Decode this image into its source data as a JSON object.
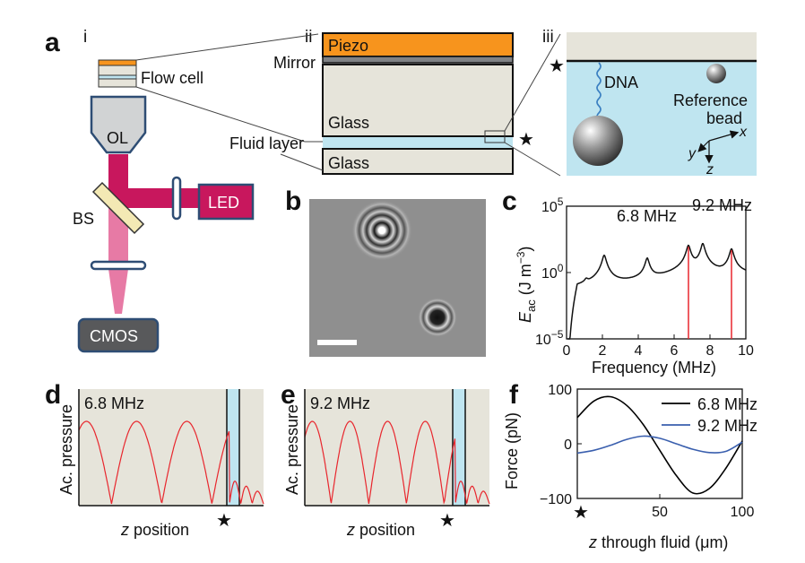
{
  "panels": {
    "a": {
      "letter": "a",
      "sub_i": "i",
      "sub_ii": "ii",
      "sub_iii": "iii",
      "flow_cell": "Flow cell",
      "ol": "OL",
      "led": "LED",
      "bs": "BS",
      "cmos": "CMOS",
      "piezo": "Piezo",
      "mirror": "Mirror",
      "glass_top": "Glass",
      "fluid_layer": "Fluid layer",
      "glass_bottom": "Glass",
      "dna": "DNA",
      "reference_line1": "Reference",
      "reference_line2": "bead",
      "axis_x": "x",
      "axis_y": "y",
      "axis_z": "z",
      "colors": {
        "piezo": "#f7941d",
        "glass": "#e6e4da",
        "fluid": "#bfe5f0",
        "beam": "#c8175d",
        "beam_faint": "#e77aa5",
        "led_box": "#c8175d",
        "dna": "#3a7fc1"
      }
    },
    "b": {
      "letter": "b"
    },
    "c": {
      "letter": "c",
      "ann1": "6.8 MHz",
      "ann2": "9.2 MHz",
      "ylabel_main": "E",
      "ylabel_sub": "ac",
      "ylabel_unit_open": " (J m",
      "ylabel_exp": "−3",
      "ylabel_close": ")",
      "xlabel": "Frequency (MHz)",
      "yticks": [
        {
          "base": "10",
          "exp": "5"
        },
        {
          "base": "10",
          "exp": "0"
        },
        {
          "base": "10",
          "exp": "−5"
        }
      ]
    },
    "d": {
      "letter": "d",
      "freq": "6.8 MHz",
      "ylabel": "Ac. pressure",
      "xlabel_var": "z",
      "xlabel_rest": " position"
    },
    "e": {
      "letter": "e",
      "freq": "9.2 MHz",
      "ylabel": "Ac. pressure",
      "xlabel_var": "z",
      "xlabel_rest": " position"
    },
    "f": {
      "letter": "f",
      "ylabel": "Force (pN)",
      "xlabel_var": "z",
      "xlabel_rest": " through fluid (μm)",
      "legend": [
        "6.8 MHz",
        "9.2 MHz"
      ],
      "colors": [
        "#000000",
        "#3a5fae"
      ]
    }
  },
  "chart_data": [
    {
      "panel": "c",
      "type": "line",
      "xlabel": "Frequency (MHz)",
      "ylabel": "E_ac (J m^-3)",
      "y_scale": "log",
      "xlim": [
        0,
        10
      ],
      "ylim": [
        1e-05,
        100000.0
      ],
      "xticks": [
        0,
        2,
        4,
        6,
        8,
        10
      ],
      "resonance_peaks_mhz": [
        1.1,
        2.1,
        4.5,
        6.8,
        7.6,
        9.2
      ],
      "resonance_peak_values": [
        0.15,
        20,
        12,
        110,
        150,
        60
      ],
      "highlighted_frequencies_mhz": [
        6.8,
        9.2
      ],
      "annotations": [
        "6.8 MHz",
        "9.2 MHz"
      ]
    },
    {
      "panel": "f",
      "type": "line",
      "xlabel": "z through fluid (μm)",
      "ylabel": "Force (pN)",
      "xlim": [
        0,
        100
      ],
      "ylim": [
        -100,
        100
      ],
      "xticks": [
        50,
        100
      ],
      "yticks": [
        -100,
        0,
        100
      ],
      "legend_position": "top-right",
      "series": [
        {
          "name": "6.8 MHz",
          "x": [
            0,
            10,
            20,
            30,
            40,
            50,
            60,
            70,
            80,
            90,
            100
          ],
          "values": [
            48,
            78,
            86,
            70,
            35,
            -12,
            -58,
            -90,
            -82,
            -45,
            5
          ]
        },
        {
          "name": "9.2 MHz",
          "x": [
            0,
            10,
            20,
            30,
            40,
            50,
            60,
            70,
            80,
            90,
            100
          ],
          "values": [
            -17,
            -12,
            -3,
            8,
            14,
            10,
            0,
            -10,
            -16,
            -14,
            3
          ]
        }
      ]
    }
  ]
}
